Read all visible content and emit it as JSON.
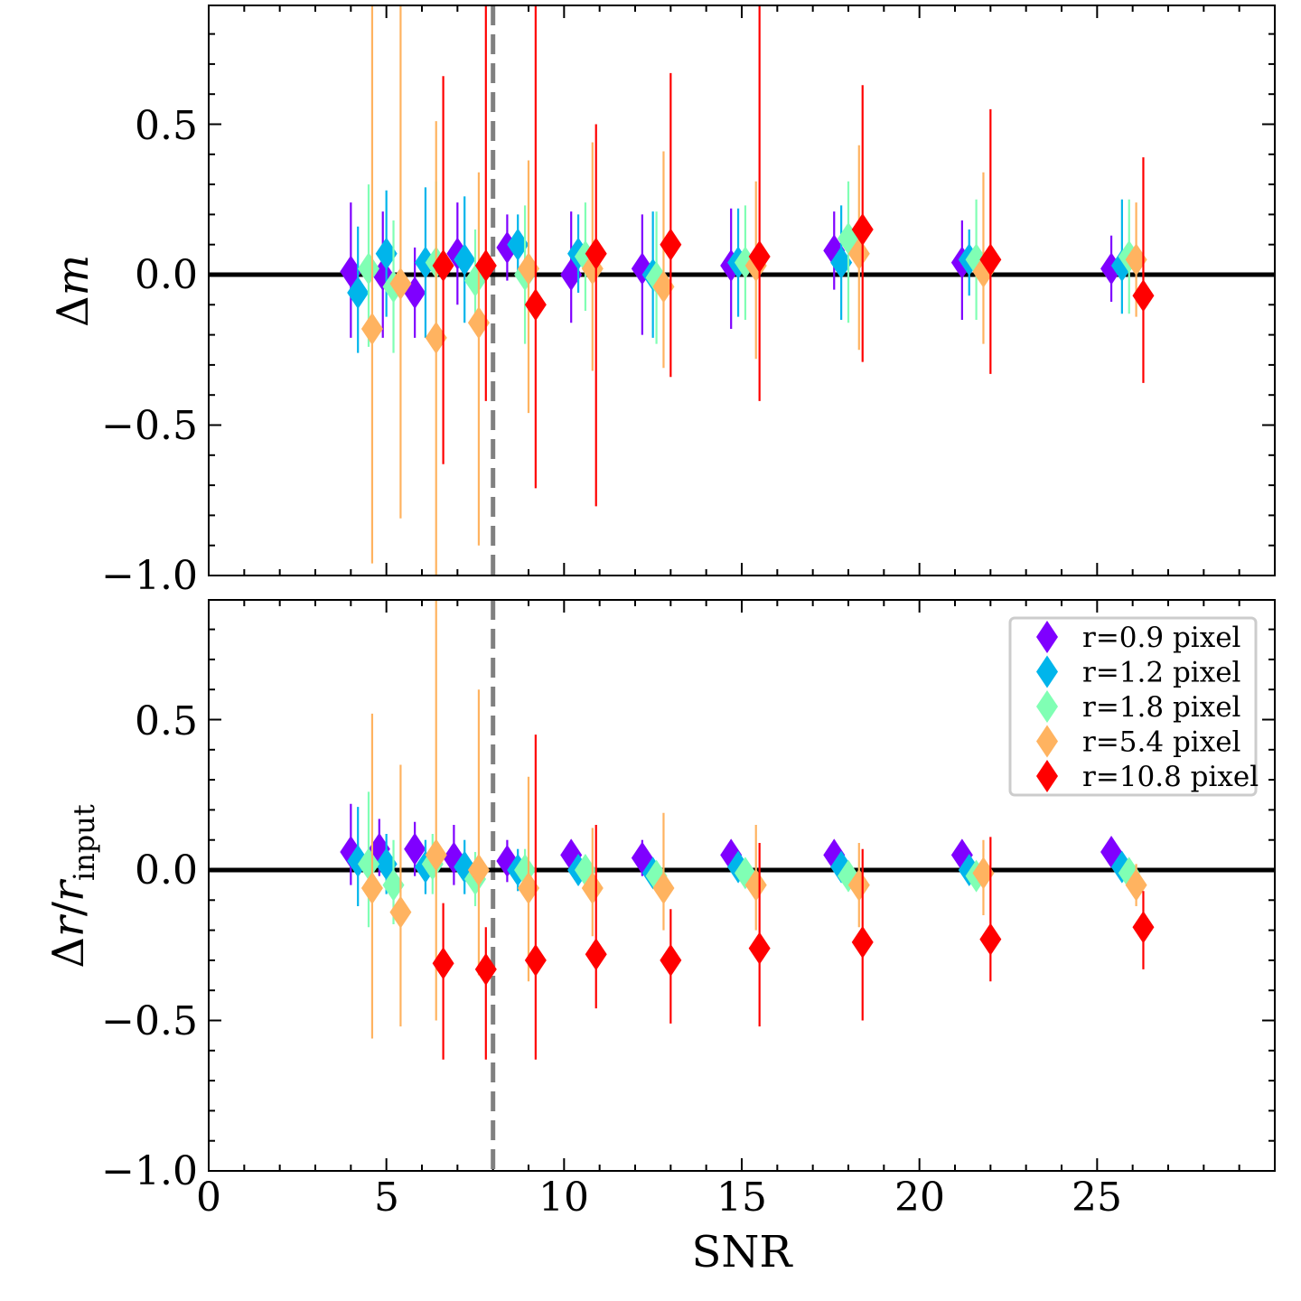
{
  "chart_data": [
    {
      "type": "scatter",
      "panel": "top",
      "title": "",
      "ylabel": "Δm",
      "xlabel": "",
      "xlim": [
        0,
        30
      ],
      "ylim": [
        -1.0,
        0.9
      ],
      "yticks": [
        "0.5",
        "0.0",
        "−0.5",
        "−1.0"
      ],
      "ytick_values": [
        0.5,
        0.0,
        -0.5,
        -1.0
      ],
      "xticks_labeled": false,
      "reference_line": 0.0,
      "threshold_line_x": 8,
      "series": [
        {
          "name": "r=0.9 pixel",
          "color": "#7f00ff",
          "points": [
            [
              4.0,
              0.01,
              0.23,
              0.22
            ],
            [
              4.9,
              0.0,
              0.21,
              0.21
            ],
            [
              5.8,
              -0.06,
              0.15,
              0.15
            ],
            [
              7.0,
              0.07,
              0.17,
              0.17
            ],
            [
              8.4,
              0.09,
              0.11,
              0.11
            ],
            [
              10.2,
              0.0,
              0.21,
              0.16
            ],
            [
              12.2,
              0.02,
              0.18,
              0.22
            ],
            [
              14.7,
              0.03,
              0.19,
              0.21
            ],
            [
              17.6,
              0.08,
              0.13,
              0.13
            ],
            [
              21.2,
              0.04,
              0.14,
              0.19
            ],
            [
              25.4,
              0.02,
              0.11,
              0.11
            ]
          ]
        },
        {
          "name": "r=1.2 pixel",
          "color": "#00b5eb",
          "points": [
            [
              4.2,
              -0.06,
              0.22,
              0.2
            ],
            [
              5.0,
              0.07,
              0.21,
              0.21
            ],
            [
              6.1,
              0.04,
              0.25,
              0.25
            ],
            [
              7.2,
              0.05,
              0.21,
              0.21
            ],
            [
              8.7,
              0.1,
              0.1,
              0.1
            ],
            [
              10.4,
              0.07,
              0.13,
              0.13
            ],
            [
              12.5,
              0.0,
              0.21,
              0.21
            ],
            [
              14.9,
              0.04,
              0.18,
              0.18
            ],
            [
              17.8,
              0.04,
              0.19,
              0.19
            ],
            [
              21.4,
              0.05,
              0.1,
              0.12
            ],
            [
              25.7,
              0.03,
              0.22,
              0.16
            ]
          ]
        },
        {
          "name": "r=1.8 pixel",
          "color": "#80ffb4",
          "points": [
            [
              4.5,
              0.02,
              0.28,
              0.26
            ],
            [
              5.2,
              -0.04,
              0.22,
              0.22
            ],
            [
              6.4,
              0.04,
              0.27,
              0.27
            ],
            [
              7.5,
              -0.02,
              0.17,
              0.17
            ],
            [
              8.9,
              0.0,
              0.23,
              0.23
            ],
            [
              10.6,
              0.06,
              0.18,
              0.18
            ],
            [
              12.6,
              -0.01,
              0.22,
              0.22
            ],
            [
              15.1,
              0.04,
              0.19,
              0.19
            ],
            [
              18.0,
              0.12,
              0.19,
              0.28
            ],
            [
              21.6,
              0.05,
              0.2,
              0.2
            ],
            [
              25.9,
              0.06,
              0.19,
              0.19
            ]
          ]
        },
        {
          "name": "r=5.4 pixel",
          "color": "#ffb360",
          "points": [
            [
              4.6,
              -0.18,
              1.1,
              0.78
            ],
            [
              5.4,
              -0.03,
              0.94,
              0.78
            ],
            [
              6.4,
              -0.21,
              0.72,
              0.8
            ],
            [
              7.6,
              -0.16,
              0.5,
              0.74
            ],
            [
              9.0,
              0.02,
              0.36,
              0.48
            ],
            [
              10.8,
              0.02,
              0.42,
              0.34
            ],
            [
              12.8,
              -0.04,
              0.45,
              0.27
            ],
            [
              15.4,
              0.03,
              0.28,
              0.31
            ],
            [
              18.3,
              0.07,
              0.36,
              0.32
            ],
            [
              21.8,
              0.01,
              0.33,
              0.24
            ],
            [
              26.1,
              0.05,
              0.19,
              0.19
            ]
          ]
        },
        {
          "name": "r=10.8 pixel",
          "color": "#ff0000",
          "points": [
            [
              6.6,
              0.03,
              0.63,
              0.66
            ],
            [
              7.8,
              0.03,
              0.87,
              0.45
            ],
            [
              9.2,
              -0.1,
              1.0,
              0.61
            ],
            [
              10.9,
              0.07,
              0.43,
              0.84
            ],
            [
              13.0,
              0.1,
              0.57,
              0.44
            ],
            [
              15.5,
              0.06,
              0.84,
              0.48
            ],
            [
              18.4,
              0.15,
              0.48,
              0.44
            ],
            [
              22.0,
              0.05,
              0.5,
              0.38
            ],
            [
              26.3,
              -0.07,
              0.46,
              0.29
            ]
          ]
        }
      ]
    },
    {
      "type": "scatter",
      "panel": "bottom",
      "title": "",
      "ylabel": "Δr/r",
      "ylabel_subscript": "input",
      "xlabel": "SNR",
      "xlim": [
        0,
        30
      ],
      "ylim": [
        -1.0,
        0.9
      ],
      "xticks": [
        "0",
        "5",
        "10",
        "15",
        "20",
        "25"
      ],
      "xtick_values": [
        0,
        5,
        10,
        15,
        20,
        25
      ],
      "yticks": [
        "0.5",
        "0.0",
        "−0.5",
        "−1.0"
      ],
      "ytick_values": [
        0.5,
        0.0,
        -0.5,
        -1.0
      ],
      "reference_line": 0.0,
      "threshold_line_x": 8,
      "legend_location": "upper right",
      "series": [
        {
          "name": "r=0.9 pixel",
          "color": "#7f00ff",
          "points": [
            [
              4.0,
              0.06,
              0.16,
              0.11
            ],
            [
              4.8,
              0.07,
              0.1,
              0.09
            ],
            [
              5.8,
              0.07,
              0.09,
              0.09
            ],
            [
              6.9,
              0.04,
              0.11,
              0.09
            ],
            [
              8.4,
              0.03,
              0.07,
              0.07
            ],
            [
              10.2,
              0.05,
              0.05,
              0.05
            ],
            [
              12.2,
              0.04,
              0.06,
              0.06
            ],
            [
              14.7,
              0.05,
              0.05,
              0.05
            ],
            [
              17.6,
              0.05,
              0.05,
              0.05
            ],
            [
              21.2,
              0.05,
              0.05,
              0.05
            ],
            [
              25.4,
              0.06,
              0.04,
              0.04
            ]
          ]
        },
        {
          "name": "r=1.2 pixel",
          "color": "#00b5eb",
          "points": [
            [
              4.2,
              0.03,
              0.18,
              0.15
            ],
            [
              5.0,
              0.02,
              0.1,
              0.1
            ],
            [
              6.1,
              0.01,
              0.09,
              0.09
            ],
            [
              7.2,
              0.01,
              0.09,
              0.09
            ],
            [
              8.7,
              0.0,
              0.07,
              0.07
            ],
            [
              10.4,
              0.0,
              0.05,
              0.05
            ],
            [
              12.5,
              -0.01,
              0.05,
              0.05
            ],
            [
              14.9,
              0.01,
              0.05,
              0.05
            ],
            [
              17.8,
              0.01,
              0.05,
              0.05
            ],
            [
              21.4,
              0.0,
              0.04,
              0.04
            ],
            [
              25.7,
              0.01,
              0.04,
              0.04
            ]
          ]
        },
        {
          "name": "r=1.8 pixel",
          "color": "#80ffb4",
          "points": [
            [
              4.5,
              0.02,
              0.24,
              0.21
            ],
            [
              5.2,
              -0.05,
              0.15,
              0.13
            ],
            [
              6.3,
              0.02,
              0.1,
              0.1
            ],
            [
              7.5,
              -0.03,
              0.09,
              0.09
            ],
            [
              8.9,
              0.0,
              0.07,
              0.07
            ],
            [
              10.6,
              0.0,
              0.05,
              0.05
            ],
            [
              12.6,
              -0.02,
              0.05,
              0.05
            ],
            [
              15.1,
              -0.01,
              0.05,
              0.05
            ],
            [
              18.0,
              -0.02,
              0.05,
              0.05
            ],
            [
              21.6,
              -0.02,
              0.04,
              0.04
            ],
            [
              25.9,
              -0.01,
              0.04,
              0.04
            ]
          ]
        },
        {
          "name": "r=5.4 pixel",
          "color": "#ffb360",
          "points": [
            [
              4.6,
              -0.06,
              0.58,
              0.5
            ],
            [
              5.4,
              -0.14,
              0.49,
              0.38
            ],
            [
              6.4,
              0.05,
              0.95,
              0.55
            ],
            [
              7.6,
              0.0,
              0.6,
              0.35
            ],
            [
              9.0,
              -0.06,
              0.37,
              0.31
            ],
            [
              10.8,
              -0.06,
              0.2,
              0.16
            ],
            [
              12.8,
              -0.06,
              0.25,
              0.14
            ],
            [
              15.4,
              -0.05,
              0.2,
              0.15
            ],
            [
              18.3,
              -0.05,
              0.14,
              0.14
            ],
            [
              21.8,
              -0.01,
              0.11,
              0.14
            ],
            [
              26.1,
              -0.05,
              0.07,
              0.07
            ]
          ]
        },
        {
          "name": "r=10.8 pixel",
          "color": "#ff0000",
          "points": [
            [
              6.6,
              -0.31,
              0.2,
              0.32
            ],
            [
              7.8,
              -0.33,
              0.14,
              0.3
            ],
            [
              9.2,
              -0.3,
              0.75,
              0.33
            ],
            [
              10.9,
              -0.28,
              0.43,
              0.18
            ],
            [
              13.0,
              -0.3,
              0.17,
              0.21
            ],
            [
              15.5,
              -0.26,
              0.35,
              0.26
            ],
            [
              18.4,
              -0.24,
              0.31,
              0.26
            ],
            [
              22.0,
              -0.23,
              0.34,
              0.14
            ],
            [
              26.3,
              -0.19,
              0.12,
              0.14
            ]
          ]
        }
      ]
    }
  ]
}
